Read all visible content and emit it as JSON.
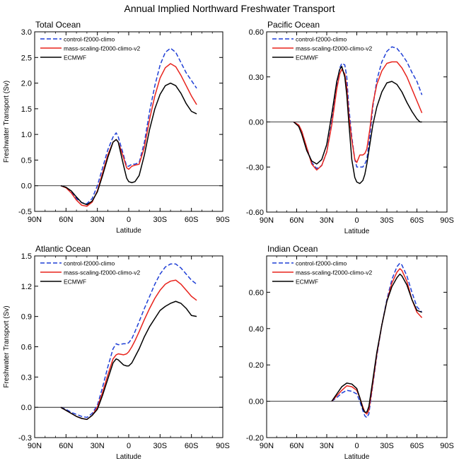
{
  "figure_title": "Annual Implied Northward Freshwater Transport",
  "series_colors": {
    "control": "#1f3fd6",
    "mass": "#e8231c",
    "ecmwf": "#000000"
  },
  "chart_data": [
    {
      "type": "line",
      "title": "Total Ocean",
      "xlabel": "Latitude",
      "ylabel": "Freshwater Transport (Sv)",
      "xlim": [
        -90,
        90
      ],
      "xticks": [
        -90,
        -60,
        -30,
        0,
        30,
        60,
        90
      ],
      "xticklabels": [
        "90N",
        "60N",
        "30N",
        "0",
        "30S",
        "60S",
        "90S"
      ],
      "ylim": [
        -0.5,
        3.0
      ],
      "yticks": [
        -0.5,
        0.0,
        0.5,
        1.0,
        1.5,
        2.0,
        2.5,
        3.0
      ],
      "yticklabels": [
        "-0.5",
        "0.0",
        "0.5",
        "1.0",
        "1.5",
        "2.0",
        "2.5",
        "3.0"
      ],
      "legend": [
        "control-f2000-climo",
        "mass-scaling-f2000-climo-v2",
        "ECMWF"
      ],
      "series": [
        {
          "name": "control-f2000-climo",
          "style": "dashed",
          "x": [
            -65,
            -60,
            -55,
            -50,
            -45,
            -40,
            -35,
            -30,
            -25,
            -20,
            -15,
            -12,
            -10,
            -5,
            -2,
            0,
            3,
            6,
            10,
            15,
            20,
            25,
            30,
            35,
            40,
            45,
            50,
            55,
            60,
            65
          ],
          "y": [
            0.0,
            -0.03,
            -0.12,
            -0.25,
            -0.33,
            -0.35,
            -0.25,
            0.0,
            0.35,
            0.7,
            0.95,
            1.03,
            0.95,
            0.6,
            0.38,
            0.38,
            0.42,
            0.42,
            0.45,
            0.85,
            1.45,
            1.95,
            2.35,
            2.6,
            2.68,
            2.6,
            2.4,
            2.2,
            2.05,
            1.9
          ]
        },
        {
          "name": "mass-scaling-f2000-climo-v2",
          "style": "solid",
          "x": [
            -65,
            -60,
            -55,
            -50,
            -45,
            -40,
            -35,
            -30,
            -25,
            -20,
            -15,
            -12,
            -10,
            -5,
            -2,
            0,
            3,
            6,
            10,
            15,
            20,
            25,
            30,
            35,
            40,
            45,
            50,
            55,
            60,
            65
          ],
          "y": [
            0.0,
            -0.04,
            -0.14,
            -0.28,
            -0.38,
            -0.4,
            -0.32,
            -0.1,
            0.25,
            0.6,
            0.85,
            0.9,
            0.85,
            0.55,
            0.35,
            0.32,
            0.38,
            0.4,
            0.42,
            0.75,
            1.3,
            1.75,
            2.1,
            2.3,
            2.38,
            2.32,
            2.15,
            1.95,
            1.75,
            1.58
          ]
        },
        {
          "name": "ECMWF",
          "style": "solid",
          "x": [
            -65,
            -60,
            -55,
            -50,
            -45,
            -40,
            -35,
            -30,
            -25,
            -20,
            -15,
            -12,
            -10,
            -5,
            -2,
            0,
            3,
            6,
            10,
            15,
            20,
            25,
            30,
            35,
            40,
            45,
            50,
            55,
            60,
            65
          ],
          "y": [
            0.0,
            -0.03,
            -0.1,
            -0.22,
            -0.33,
            -0.37,
            -0.3,
            -0.12,
            0.2,
            0.55,
            0.85,
            0.9,
            0.85,
            0.4,
            0.15,
            0.08,
            0.06,
            0.08,
            0.2,
            0.6,
            1.1,
            1.5,
            1.78,
            1.95,
            2.0,
            1.95,
            1.8,
            1.6,
            1.45,
            1.4
          ]
        }
      ]
    },
    {
      "type": "line",
      "title": "Pacific Ocean",
      "xlabel": "Latitude",
      "ylabel": "",
      "xlim": [
        -90,
        90
      ],
      "xticks": [
        -90,
        -60,
        -30,
        0,
        30,
        60,
        90
      ],
      "xticklabels": [
        "90N",
        "60N",
        "30N",
        "0",
        "30S",
        "60S",
        "90S"
      ],
      "ylim": [
        -0.6,
        0.6
      ],
      "yticks": [
        -0.6,
        -0.3,
        0.0,
        0.3,
        0.6
      ],
      "yticklabels": [
        "-0.60",
        "-0.30",
        "0.00",
        "0.30",
        "0.60"
      ],
      "legend": [
        "control-f2000-climo",
        "mass-scaling-f2000-climo-v2",
        "ECMWF"
      ],
      "series": [
        {
          "name": "control-f2000-climo",
          "style": "dashed",
          "x": [
            -63,
            -58,
            -55,
            -50,
            -45,
            -40,
            -35,
            -30,
            -25,
            -20,
            -17,
            -15,
            -12,
            -10,
            -8,
            -5,
            -2,
            0,
            3,
            6,
            8,
            10,
            13,
            16,
            20,
            25,
            30,
            35,
            40,
            45,
            50,
            55,
            60,
            65
          ],
          "y": [
            0.0,
            -0.02,
            -0.06,
            -0.17,
            -0.27,
            -0.31,
            -0.29,
            -0.2,
            0.0,
            0.25,
            0.36,
            0.39,
            0.38,
            0.3,
            0.1,
            -0.1,
            -0.25,
            -0.3,
            -0.3,
            -0.3,
            -0.28,
            -0.25,
            -0.1,
            0.1,
            0.28,
            0.4,
            0.47,
            0.5,
            0.49,
            0.45,
            0.4,
            0.33,
            0.27,
            0.18
          ]
        },
        {
          "name": "mass-scaling-f2000-climo-v2",
          "style": "solid",
          "x": [
            -63,
            -58,
            -55,
            -50,
            -45,
            -40,
            -35,
            -30,
            -25,
            -20,
            -17,
            -15,
            -12,
            -10,
            -8,
            -5,
            -2,
            0,
            3,
            6,
            8,
            10,
            13,
            16,
            20,
            25,
            30,
            35,
            40,
            45,
            50,
            55,
            60,
            65
          ],
          "y": [
            0.0,
            -0.02,
            -0.06,
            -0.17,
            -0.28,
            -0.32,
            -0.29,
            -0.2,
            -0.02,
            0.22,
            0.32,
            0.35,
            0.32,
            0.23,
            0.05,
            -0.12,
            -0.25,
            -0.27,
            -0.22,
            -0.22,
            -0.21,
            -0.18,
            -0.05,
            0.12,
            0.25,
            0.34,
            0.39,
            0.4,
            0.4,
            0.36,
            0.3,
            0.22,
            0.14,
            0.06
          ]
        },
        {
          "name": "ECMWF",
          "style": "solid",
          "x": [
            -63,
            -58,
            -55,
            -50,
            -45,
            -40,
            -35,
            -30,
            -25,
            -20,
            -17,
            -15,
            -12,
            -10,
            -8,
            -5,
            -2,
            0,
            3,
            6,
            8,
            10,
            13,
            16,
            20,
            25,
            30,
            35,
            40,
            45,
            50,
            55,
            60,
            63,
            65
          ],
          "y": [
            0.0,
            -0.03,
            -0.08,
            -0.19,
            -0.26,
            -0.28,
            -0.25,
            -0.15,
            0.05,
            0.27,
            0.35,
            0.37,
            0.3,
            0.18,
            0.0,
            -0.25,
            -0.37,
            -0.4,
            -0.41,
            -0.39,
            -0.35,
            -0.28,
            -0.15,
            -0.02,
            0.1,
            0.2,
            0.26,
            0.27,
            0.25,
            0.2,
            0.13,
            0.07,
            0.02,
            0.0,
            0.0
          ]
        }
      ]
    },
    {
      "type": "line",
      "title": "Atlantic Ocean",
      "xlabel": "Latitude",
      "ylabel": "Freshwater Transport (Sv)",
      "xlim": [
        -90,
        90
      ],
      "xticks": [
        -90,
        -60,
        -30,
        0,
        30,
        60,
        90
      ],
      "xticklabels": [
        "90N",
        "60N",
        "30N",
        "0",
        "30S",
        "60S",
        "90S"
      ],
      "ylim": [
        -0.3,
        1.5
      ],
      "yticks": [
        -0.3,
        0.0,
        0.3,
        0.6,
        0.9,
        1.2,
        1.5
      ],
      "yticklabels": [
        "-0.3",
        "0.0",
        "0.3",
        "0.6",
        "0.9",
        "1.2",
        "1.5"
      ],
      "legend": [
        "control-f2000-climo",
        "mass-scaling-f2000-climo-v2",
        "ECMWF"
      ],
      "series": [
        {
          "name": "control-f2000-climo",
          "style": "dashed",
          "x": [
            -65,
            -60,
            -55,
            -50,
            -45,
            -40,
            -35,
            -30,
            -25,
            -20,
            -15,
            -12,
            -10,
            -5,
            -2,
            0,
            3,
            6,
            10,
            15,
            20,
            25,
            30,
            35,
            40,
            45,
            50,
            55,
            60,
            65
          ],
          "y": [
            0.0,
            -0.02,
            -0.05,
            -0.07,
            -0.09,
            -0.1,
            -0.06,
            0.02,
            0.2,
            0.4,
            0.58,
            0.63,
            0.62,
            0.63,
            0.63,
            0.64,
            0.68,
            0.75,
            0.85,
            0.98,
            1.1,
            1.22,
            1.32,
            1.39,
            1.42,
            1.42,
            1.38,
            1.32,
            1.26,
            1.22
          ]
        },
        {
          "name": "mass-scaling-f2000-climo-v2",
          "style": "solid",
          "x": [
            -65,
            -60,
            -55,
            -50,
            -45,
            -40,
            -35,
            -30,
            -25,
            -20,
            -15,
            -12,
            -10,
            -5,
            -2,
            0,
            3,
            6,
            10,
            15,
            20,
            25,
            30,
            35,
            40,
            45,
            50,
            55,
            60,
            65
          ],
          "y": [
            0.0,
            -0.03,
            -0.06,
            -0.09,
            -0.11,
            -0.12,
            -0.08,
            0.0,
            0.15,
            0.32,
            0.48,
            0.52,
            0.53,
            0.52,
            0.53,
            0.55,
            0.6,
            0.66,
            0.75,
            0.87,
            0.98,
            1.08,
            1.16,
            1.22,
            1.25,
            1.26,
            1.22,
            1.16,
            1.1,
            1.06
          ]
        },
        {
          "name": "ECMWF",
          "style": "solid",
          "x": [
            -65,
            -60,
            -55,
            -50,
            -45,
            -40,
            -35,
            -30,
            -25,
            -20,
            -15,
            -12,
            -10,
            -5,
            -2,
            0,
            3,
            6,
            10,
            15,
            20,
            25,
            30,
            35,
            40,
            45,
            50,
            55,
            60,
            65
          ],
          "y": [
            0.0,
            -0.03,
            -0.06,
            -0.09,
            -0.11,
            -0.12,
            -0.08,
            -0.02,
            0.12,
            0.28,
            0.44,
            0.48,
            0.47,
            0.42,
            0.41,
            0.41,
            0.44,
            0.5,
            0.58,
            0.7,
            0.8,
            0.88,
            0.96,
            1.0,
            1.03,
            1.05,
            1.03,
            0.98,
            0.91,
            0.9
          ]
        }
      ]
    },
    {
      "type": "line",
      "title": "Indian Ocean",
      "xlabel": "Latitude",
      "ylabel": "",
      "xlim": [
        -90,
        90
      ],
      "xticks": [
        -90,
        -60,
        -30,
        0,
        30,
        60,
        90
      ],
      "xticklabels": [
        "90N",
        "60N",
        "30N",
        "0",
        "30S",
        "60S",
        "90S"
      ],
      "ylim": [
        -0.2,
        0.8
      ],
      "yticks": [
        -0.2,
        0.0,
        0.2,
        0.4,
        0.6
      ],
      "yticklabels": [
        "-0.20",
        "0.00",
        "0.20",
        "0.40",
        "0.60"
      ],
      "legend": [
        "control-f2000-climo",
        "mass-scaling-f2000-climo-v2",
        "ECMWF"
      ],
      "series": [
        {
          "name": "control-f2000-climo",
          "style": "dashed",
          "x": [
            -25,
            -20,
            -15,
            -10,
            -5,
            0,
            3,
            6,
            8,
            10,
            12,
            15,
            20,
            25,
            30,
            35,
            40,
            43,
            45,
            50,
            55,
            60,
            65
          ],
          "y": [
            0.0,
            0.02,
            0.045,
            0.06,
            0.055,
            0.04,
            0.0,
            -0.05,
            -0.08,
            -0.09,
            -0.07,
            0.05,
            0.25,
            0.42,
            0.56,
            0.67,
            0.74,
            0.76,
            0.75,
            0.69,
            0.6,
            0.52,
            0.49
          ]
        },
        {
          "name": "mass-scaling-f2000-climo-v2",
          "style": "solid",
          "x": [
            -25,
            -20,
            -15,
            -10,
            -5,
            0,
            3,
            6,
            8,
            10,
            12,
            15,
            20,
            25,
            30,
            35,
            40,
            43,
            45,
            50,
            55,
            60,
            65
          ],
          "y": [
            0.0,
            0.03,
            0.06,
            0.085,
            0.08,
            0.06,
            0.02,
            -0.03,
            -0.06,
            -0.07,
            -0.05,
            0.06,
            0.26,
            0.42,
            0.55,
            0.65,
            0.71,
            0.73,
            0.72,
            0.66,
            0.56,
            0.49,
            0.46
          ]
        },
        {
          "name": "ECMWF",
          "style": "solid",
          "x": [
            -25,
            -20,
            -15,
            -10,
            -5,
            0,
            3,
            6,
            8,
            10,
            12,
            15,
            20,
            25,
            30,
            35,
            40,
            43,
            45,
            50,
            55,
            60,
            65
          ],
          "y": [
            0.0,
            0.04,
            0.08,
            0.1,
            0.095,
            0.07,
            0.02,
            -0.04,
            -0.06,
            -0.06,
            -0.03,
            0.08,
            0.27,
            0.42,
            0.55,
            0.63,
            0.68,
            0.7,
            0.69,
            0.64,
            0.56,
            0.5,
            0.49
          ]
        }
      ]
    }
  ]
}
